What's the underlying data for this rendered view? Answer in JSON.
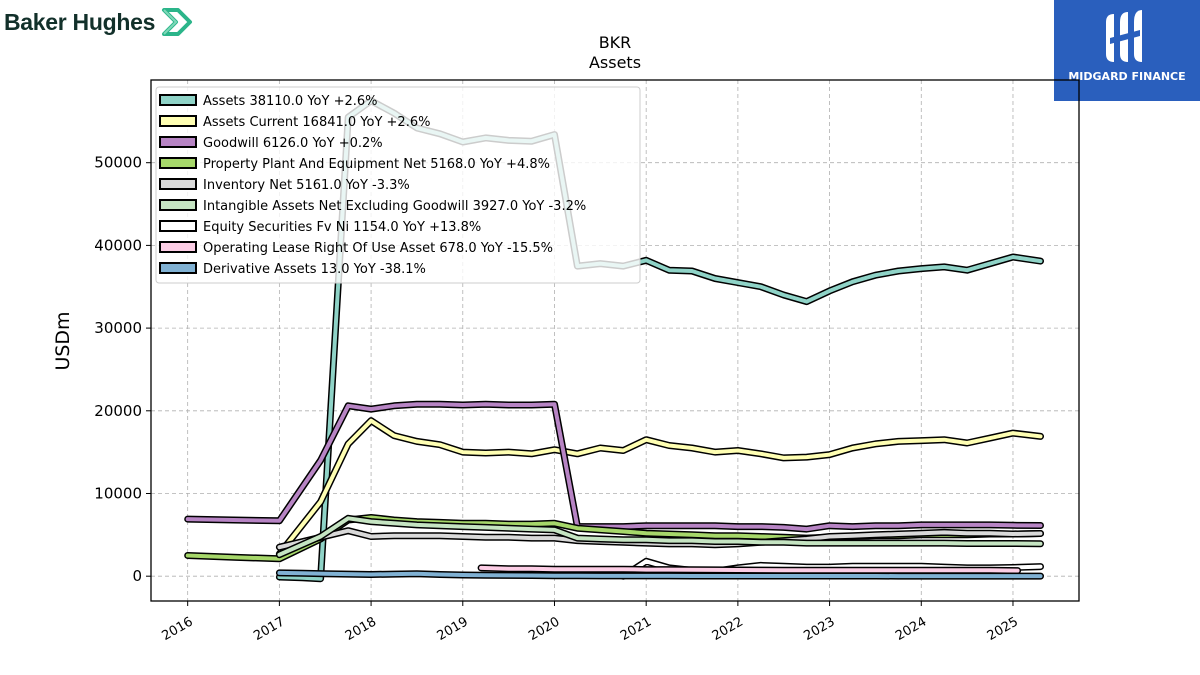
{
  "brand": {
    "name": "Baker Hughes",
    "logo_color": "#2bb58a"
  },
  "badge": {
    "name": "MIDGARD FINANCE",
    "color": "#2a5fbd"
  },
  "chart_data": {
    "type": "line",
    "title": "BKR",
    "subtitle": "Assets",
    "ylabel": "USDm",
    "xlabel": "",
    "xlim": [
      2015.6,
      2025.72
    ],
    "ylim": [
      -3000,
      60000
    ],
    "yticks": [
      0,
      10000,
      20000,
      30000,
      40000,
      50000
    ],
    "xticks": [
      2016,
      2017,
      2018,
      2019,
      2020,
      2021,
      2022,
      2023,
      2024,
      2025
    ],
    "grid": true,
    "legend_position": "top-left",
    "series": [
      {
        "name": "Assets",
        "legend": "Assets  38110.0 YoY +2.6%",
        "color": "#8fd3c7",
        "points": [
          [
            2017.0,
            -100
          ],
          [
            2017.25,
            -200
          ],
          [
            2017.45,
            -300
          ],
          [
            2017.75,
            55500
          ],
          [
            2018.0,
            57500
          ],
          [
            2018.25,
            56000
          ],
          [
            2018.5,
            54200
          ],
          [
            2018.75,
            53500
          ],
          [
            2019.0,
            52500
          ],
          [
            2019.25,
            53000
          ],
          [
            2019.5,
            52700
          ],
          [
            2019.75,
            52600
          ],
          [
            2020.0,
            53400
          ],
          [
            2020.25,
            37500
          ],
          [
            2020.5,
            37800
          ],
          [
            2020.75,
            37500
          ],
          [
            2021.0,
            38200
          ],
          [
            2021.25,
            37000
          ],
          [
            2021.5,
            36900
          ],
          [
            2021.75,
            36000
          ],
          [
            2022.0,
            35500
          ],
          [
            2022.25,
            35000
          ],
          [
            2022.5,
            34000
          ],
          [
            2022.75,
            33200
          ],
          [
            2023.0,
            34500
          ],
          [
            2023.25,
            35600
          ],
          [
            2023.5,
            36400
          ],
          [
            2023.75,
            36900
          ],
          [
            2024.0,
            37200
          ],
          [
            2024.25,
            37400
          ],
          [
            2024.5,
            37000
          ],
          [
            2024.75,
            37800
          ],
          [
            2025.0,
            38600
          ],
          [
            2025.3,
            38100
          ]
        ]
      },
      {
        "name": "Assets Current",
        "legend": "Assets Current  16841.0 YoY +2.6%",
        "color": "#ffffb3",
        "points": [
          [
            2017.0,
            2700
          ],
          [
            2017.45,
            9000
          ],
          [
            2017.75,
            16000
          ],
          [
            2018.0,
            18800
          ],
          [
            2018.25,
            17000
          ],
          [
            2018.5,
            16300
          ],
          [
            2018.75,
            15900
          ],
          [
            2019.0,
            15000
          ],
          [
            2019.25,
            14900
          ],
          [
            2019.5,
            15000
          ],
          [
            2019.75,
            14800
          ],
          [
            2020.0,
            15300
          ],
          [
            2020.25,
            14800
          ],
          [
            2020.5,
            15500
          ],
          [
            2020.75,
            15200
          ],
          [
            2021.0,
            16500
          ],
          [
            2021.25,
            15800
          ],
          [
            2021.5,
            15500
          ],
          [
            2021.75,
            15000
          ],
          [
            2022.0,
            15200
          ],
          [
            2022.25,
            14800
          ],
          [
            2022.5,
            14300
          ],
          [
            2022.75,
            14400
          ],
          [
            2023.0,
            14700
          ],
          [
            2023.25,
            15500
          ],
          [
            2023.5,
            16000
          ],
          [
            2023.75,
            16300
          ],
          [
            2024.0,
            16400
          ],
          [
            2024.25,
            16500
          ],
          [
            2024.5,
            16100
          ],
          [
            2024.75,
            16700
          ],
          [
            2025.0,
            17300
          ],
          [
            2025.3,
            16900
          ]
        ]
      },
      {
        "name": "Goodwill",
        "legend": "Goodwill  6126.0 YoY +0.2%",
        "color": "#b784c4",
        "points": [
          [
            2016.0,
            6900
          ],
          [
            2016.5,
            6800
          ],
          [
            2017.0,
            6700
          ],
          [
            2017.45,
            14000
          ],
          [
            2017.75,
            20600
          ],
          [
            2018.0,
            20200
          ],
          [
            2018.25,
            20600
          ],
          [
            2018.5,
            20800
          ],
          [
            2018.75,
            20800
          ],
          [
            2019.0,
            20700
          ],
          [
            2019.25,
            20800
          ],
          [
            2019.5,
            20700
          ],
          [
            2019.75,
            20700
          ],
          [
            2020.0,
            20800
          ],
          [
            2020.25,
            6000
          ],
          [
            2020.5,
            6000
          ],
          [
            2020.75,
            6000
          ],
          [
            2021.0,
            6100
          ],
          [
            2021.25,
            6100
          ],
          [
            2021.5,
            6100
          ],
          [
            2021.75,
            6100
          ],
          [
            2022.0,
            6000
          ],
          [
            2022.25,
            6000
          ],
          [
            2022.5,
            5900
          ],
          [
            2022.75,
            5700
          ],
          [
            2023.0,
            6100
          ],
          [
            2023.25,
            6000
          ],
          [
            2023.5,
            6100
          ],
          [
            2023.75,
            6100
          ],
          [
            2024.0,
            6200
          ],
          [
            2024.25,
            6200
          ],
          [
            2024.5,
            6200
          ],
          [
            2024.75,
            6200
          ],
          [
            2025.0,
            6150
          ],
          [
            2025.3,
            6126
          ]
        ]
      },
      {
        "name": "Property Plant And Equipment Net",
        "legend": "Property Plant And Equipment Net  5168.0 YoY +4.8%",
        "color": "#a6d76a",
        "points": [
          [
            2016.0,
            2500
          ],
          [
            2016.5,
            2300
          ],
          [
            2017.0,
            2100
          ],
          [
            2017.45,
            4500
          ],
          [
            2017.75,
            6800
          ],
          [
            2018.0,
            7100
          ],
          [
            2018.25,
            6800
          ],
          [
            2018.5,
            6600
          ],
          [
            2018.75,
            6500
          ],
          [
            2019.0,
            6400
          ],
          [
            2019.25,
            6400
          ],
          [
            2019.5,
            6300
          ],
          [
            2019.75,
            6300
          ],
          [
            2020.0,
            6400
          ],
          [
            2020.25,
            5800
          ],
          [
            2020.5,
            5600
          ],
          [
            2020.75,
            5400
          ],
          [
            2021.0,
            5200
          ],
          [
            2021.25,
            5100
          ],
          [
            2021.5,
            5000
          ],
          [
            2021.75,
            4900
          ],
          [
            2022.0,
            4900
          ],
          [
            2022.25,
            4800
          ],
          [
            2022.5,
            4700
          ],
          [
            2022.75,
            4600
          ],
          [
            2023.0,
            4700
          ],
          [
            2023.25,
            4800
          ],
          [
            2023.5,
            4900
          ],
          [
            2023.75,
            4900
          ],
          [
            2024.0,
            5000
          ],
          [
            2024.25,
            5000
          ],
          [
            2024.5,
            5000
          ],
          [
            2024.75,
            5100
          ],
          [
            2025.0,
            5100
          ],
          [
            2025.3,
            5168
          ]
        ]
      },
      {
        "name": "Inventory Net",
        "legend": "Inventory Net  5161.0 YoY -3.3%",
        "color": "#d9d9d9",
        "points": [
          [
            2017.0,
            3500
          ],
          [
            2017.45,
            4700
          ],
          [
            2017.75,
            5500
          ],
          [
            2018.0,
            4800
          ],
          [
            2018.25,
            4900
          ],
          [
            2018.5,
            4900
          ],
          [
            2018.75,
            4900
          ],
          [
            2019.0,
            4800
          ],
          [
            2019.25,
            4700
          ],
          [
            2019.5,
            4700
          ],
          [
            2019.75,
            4600
          ],
          [
            2020.0,
            4600
          ],
          [
            2020.25,
            4300
          ],
          [
            2020.5,
            4200
          ],
          [
            2020.75,
            4100
          ],
          [
            2021.0,
            4000
          ],
          [
            2021.25,
            3900
          ],
          [
            2021.5,
            3900
          ],
          [
            2021.75,
            3800
          ],
          [
            2022.0,
            3900
          ],
          [
            2022.25,
            4100
          ],
          [
            2022.5,
            4300
          ],
          [
            2022.75,
            4500
          ],
          [
            2023.0,
            4800
          ],
          [
            2023.25,
            4900
          ],
          [
            2023.5,
            5000
          ],
          [
            2023.75,
            5100
          ],
          [
            2024.0,
            5200
          ],
          [
            2024.25,
            5300
          ],
          [
            2024.5,
            5200
          ],
          [
            2024.75,
            5200
          ],
          [
            2025.0,
            5100
          ],
          [
            2025.3,
            5161
          ]
        ]
      },
      {
        "name": "Intangible Assets Net Excluding Goodwill",
        "legend": "Intangible Assets Net Excluding Goodwill  3927.0 YoY -3.2%",
        "color": "#c5e4c2",
        "points": [
          [
            2017.0,
            2600
          ],
          [
            2017.45,
            4800
          ],
          [
            2017.75,
            7000
          ],
          [
            2018.0,
            6600
          ],
          [
            2018.25,
            6400
          ],
          [
            2018.5,
            6200
          ],
          [
            2018.75,
            6100
          ],
          [
            2019.0,
            6000
          ],
          [
            2019.25,
            5900
          ],
          [
            2019.5,
            5800
          ],
          [
            2019.75,
            5700
          ],
          [
            2020.0,
            5600
          ],
          [
            2020.25,
            4600
          ],
          [
            2020.5,
            4500
          ],
          [
            2020.75,
            4400
          ],
          [
            2021.0,
            4400
          ],
          [
            2021.25,
            4300
          ],
          [
            2021.5,
            4300
          ],
          [
            2021.75,
            4200
          ],
          [
            2022.0,
            4200
          ],
          [
            2022.25,
            4100
          ],
          [
            2022.5,
            4100
          ],
          [
            2022.75,
            4000
          ],
          [
            2023.0,
            4000
          ],
          [
            2023.25,
            4000
          ],
          [
            2023.5,
            4000
          ],
          [
            2023.75,
            4000
          ],
          [
            2024.0,
            4000
          ],
          [
            2024.25,
            4000
          ],
          [
            2024.5,
            3950
          ],
          [
            2024.75,
            3950
          ],
          [
            2025.0,
            3950
          ],
          [
            2025.3,
            3927
          ]
        ]
      },
      {
        "name": "Equity Securities Fv Ni",
        "legend": "Equity Securities Fv Ni  1154.0 YoY +13.8%",
        "color": "#ffffff",
        "points": [
          [
            2020.75,
            0
          ],
          [
            2021.0,
            1800
          ],
          [
            2021.25,
            1000
          ],
          [
            2021.5,
            700
          ],
          [
            2021.75,
            600
          ],
          [
            2022.0,
            1000
          ],
          [
            2022.25,
            1300
          ],
          [
            2022.5,
            1200
          ],
          [
            2022.75,
            1100
          ],
          [
            2023.0,
            1100
          ],
          [
            2023.25,
            1200
          ],
          [
            2023.5,
            1200
          ],
          [
            2023.75,
            1200
          ],
          [
            2024.0,
            1200
          ],
          [
            2024.25,
            1100
          ],
          [
            2024.5,
            1000
          ],
          [
            2024.75,
            1000
          ],
          [
            2025.0,
            1050
          ],
          [
            2025.3,
            1154
          ]
        ]
      },
      {
        "name": "Operating Lease Right Of Use Asset",
        "legend": "Operating Lease Right Of Use Asset  678.0 YoY -15.5%",
        "color": "#fccde5",
        "points": [
          [
            2019.2,
            1000
          ],
          [
            2019.5,
            900
          ],
          [
            2019.75,
            900
          ],
          [
            2020.0,
            850
          ],
          [
            2020.25,
            850
          ],
          [
            2020.5,
            850
          ],
          [
            2020.75,
            850
          ],
          [
            2021.0,
            800
          ],
          [
            2021.25,
            800
          ],
          [
            2021.5,
            780
          ],
          [
            2021.75,
            760
          ],
          [
            2022.0,
            750
          ],
          [
            2022.25,
            740
          ],
          [
            2022.5,
            730
          ],
          [
            2022.75,
            730
          ],
          [
            2023.0,
            720
          ],
          [
            2023.25,
            720
          ],
          [
            2023.5,
            720
          ],
          [
            2023.75,
            720
          ],
          [
            2024.0,
            720
          ],
          [
            2024.25,
            720
          ],
          [
            2024.5,
            720
          ],
          [
            2024.75,
            720
          ],
          [
            2025.05,
            678
          ]
        ]
      },
      {
        "name": "Derivative Assets",
        "legend": "Derivative Assets  13.0 YoY -38.1%",
        "color": "#80b1d3",
        "points": [
          [
            2017.0,
            400
          ],
          [
            2017.25,
            350
          ],
          [
            2017.5,
            300
          ],
          [
            2017.75,
            250
          ],
          [
            2018.0,
            200
          ],
          [
            2018.25,
            250
          ],
          [
            2018.5,
            300
          ],
          [
            2018.75,
            200
          ],
          [
            2019.0,
            150
          ],
          [
            2019.25,
            120
          ],
          [
            2019.5,
            100
          ],
          [
            2019.75,
            80
          ],
          [
            2020.0,
            60
          ],
          [
            2020.25,
            50
          ],
          [
            2020.5,
            40
          ],
          [
            2020.75,
            35
          ],
          [
            2021.0,
            30
          ],
          [
            2021.25,
            30
          ],
          [
            2021.5,
            25
          ],
          [
            2021.75,
            25
          ],
          [
            2022.0,
            20
          ],
          [
            2022.25,
            20
          ],
          [
            2022.5,
            20
          ],
          [
            2022.75,
            18
          ],
          [
            2023.0,
            18
          ],
          [
            2023.25,
            18
          ],
          [
            2023.5,
            17
          ],
          [
            2023.75,
            16
          ],
          [
            2024.0,
            16
          ],
          [
            2024.25,
            15
          ],
          [
            2024.5,
            15
          ],
          [
            2024.75,
            14
          ],
          [
            2025.0,
            14
          ],
          [
            2025.3,
            13
          ]
        ]
      }
    ]
  }
}
